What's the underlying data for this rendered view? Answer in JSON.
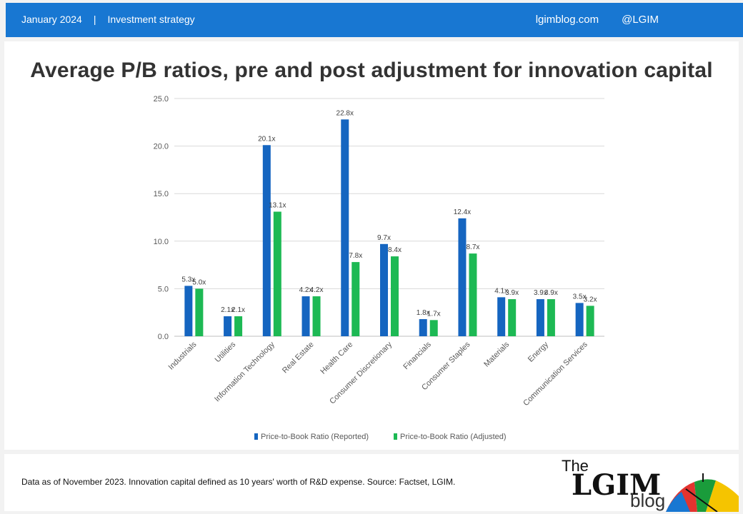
{
  "header": {
    "date": "January 2024",
    "separator": "|",
    "section": "Investment strategy",
    "site": "lgimblog.com",
    "handle": "@LGIM"
  },
  "title": "Average P/B ratios, pre and post adjustment for innovation capital",
  "footnote": "Data as of November 2023. Innovation capital defined as 10 years' worth of R&D expense. Source: Factset, LGIM.",
  "logo": {
    "the": "The",
    "lgim": "LGIM",
    "blog": "blog"
  },
  "chart_data": {
    "type": "bar",
    "categories": [
      "Industrials",
      "Utilities",
      "Information Technology",
      "Real Estate",
      "Health Care",
      "Consumer Discretionary",
      "Financials",
      "Consumer Staples",
      "Materials",
      "Energy",
      "Communication Services"
    ],
    "series": [
      {
        "name": "Price-to-Book Ratio (Reported)",
        "color": "#1565c0",
        "values": [
          5.3,
          2.1,
          20.1,
          4.2,
          22.8,
          9.7,
          1.8,
          12.4,
          4.1,
          3.9,
          3.5
        ],
        "labels": [
          "5.3x",
          "2.1x",
          "20.1x",
          "4.2x",
          "22.8x",
          "9.7x",
          "1.8x",
          "12.4x",
          "4.1x",
          "3.9x",
          "3.5x"
        ]
      },
      {
        "name": "Price-to-Book Ratio (Adjusted)",
        "color": "#1db954",
        "values": [
          5.0,
          2.1,
          13.1,
          4.2,
          7.8,
          8.4,
          1.7,
          8.7,
          3.9,
          3.9,
          3.2
        ],
        "labels": [
          "5.0x",
          "2.1x",
          "13.1x",
          "4.2x",
          "7.8x",
          "8.4x",
          "1.7x",
          "8.7x",
          "3.9x",
          "3.9x",
          "3.2x"
        ]
      }
    ],
    "yticks": [
      "0.0",
      "5.0",
      "10.0",
      "15.0",
      "20.0",
      "25.0"
    ],
    "ylim": [
      0,
      25
    ],
    "grid": true,
    "legend_position": "bottom"
  }
}
